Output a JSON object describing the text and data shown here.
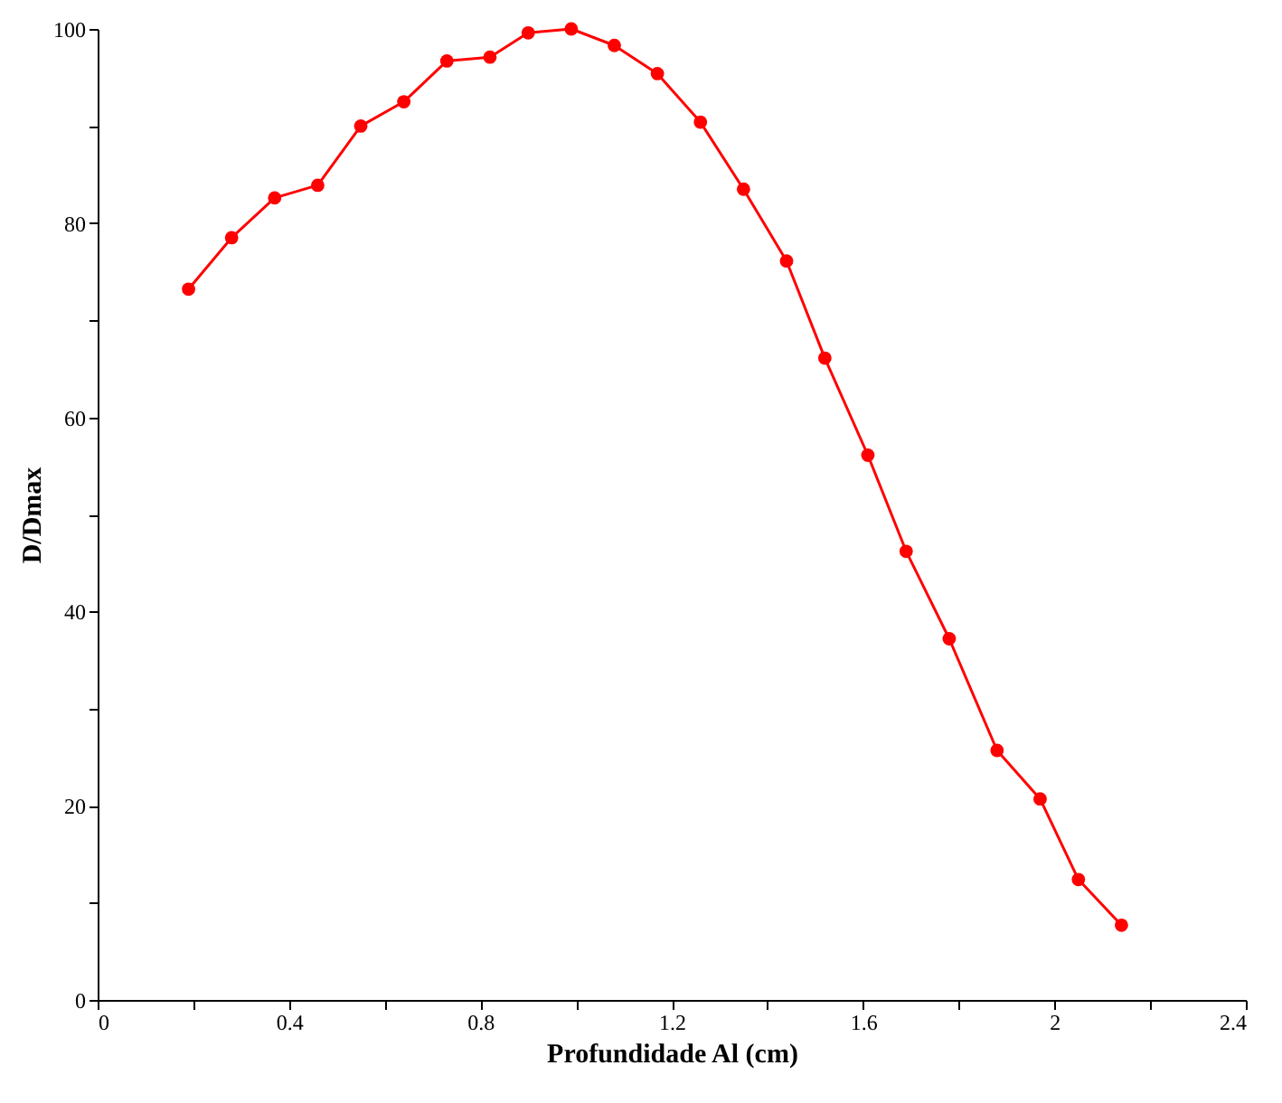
{
  "chart_data": {
    "type": "line",
    "xlabel": "Profundidade Al (cm)",
    "ylabel": "D/Dmax",
    "x": [
      0.19,
      0.28,
      0.37,
      0.46,
      0.55,
      0.64,
      0.73,
      0.82,
      0.9,
      0.99,
      1.08,
      1.17,
      1.26,
      1.35,
      1.44,
      1.52,
      1.61,
      1.69,
      1.78,
      1.88,
      1.97,
      2.05,
      2.14
    ],
    "series": [
      {
        "color": "#ff0000",
        "values": [
          73.2,
          78.5,
          82.6,
          83.9,
          90,
          92.5,
          96.7,
          97.1,
          99.6,
          100,
          98.3,
          95.4,
          90.4,
          83.5,
          76.1,
          66.1,
          56.1,
          46.2,
          37.2,
          25.7,
          20.7,
          12.4,
          7.7
        ]
      }
    ],
    "xlim": [
      0,
      2.4
    ],
    "xticks": [
      0,
      {
        "value": 0.2,
        "label": null
      },
      0.4,
      {
        "value": 0.6,
        "label": null
      },
      0.8,
      {
        "value": 1.0,
        "label": null
      },
      1.2,
      {
        "value": 1.4,
        "label": null
      },
      1.6,
      {
        "value": 1.8,
        "label": null
      },
      2,
      {
        "value": 2.2,
        "label": null
      },
      2.4
    ],
    "ylim": [
      0,
      100
    ],
    "yticks": [
      0,
      {
        "value": 10,
        "label": null
      },
      20,
      {
        "value": 30,
        "label": null
      },
      40,
      {
        "value": 50,
        "label": null
      },
      60,
      {
        "value": 70,
        "label": null
      },
      80,
      {
        "value": 90,
        "label": null
      },
      100
    ],
    "grid": false,
    "marker": "circle",
    "line_style": "solid"
  }
}
